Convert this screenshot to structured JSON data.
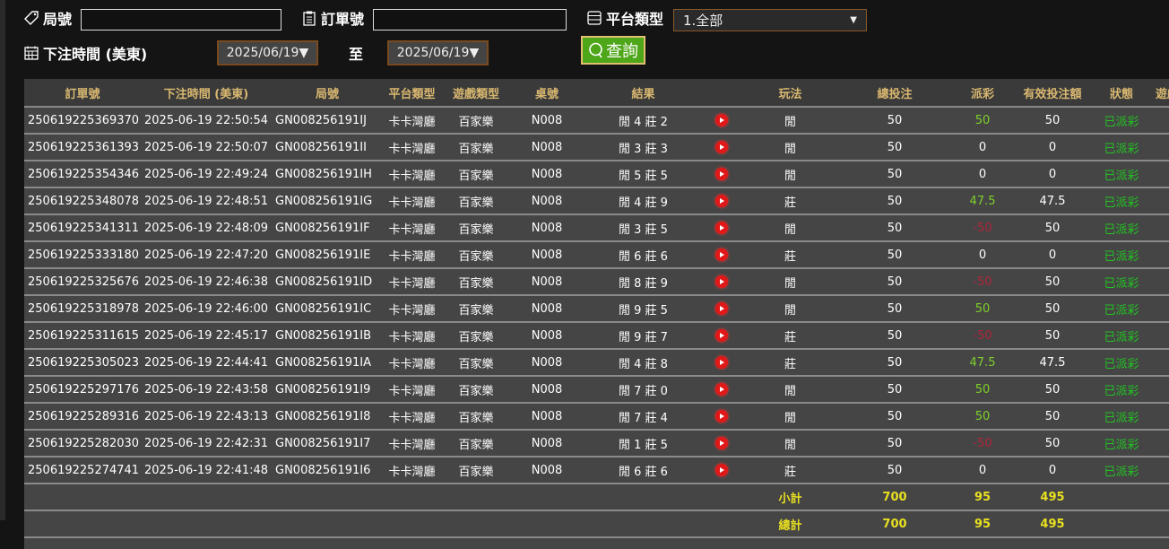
{
  "filters": {
    "round_label": "局號",
    "round_value": "",
    "order_label": "訂單號",
    "order_value": "",
    "platform_label": "平台類型",
    "platform_value": "1.全部",
    "time_label": "下注時間 (美東)",
    "date_from": "2025/06/19▼",
    "to_label": "至",
    "date_to": "2025/06/19▼",
    "query_label": "查詢"
  },
  "table": {
    "headers": [
      "訂單號",
      "下注時間 (美東)",
      "局號",
      "平台類型",
      "遊戲類型",
      "桌號",
      "結果",
      "",
      "玩法",
      "總投注",
      "派彩",
      "有效投注額",
      "狀態",
      "遊戲"
    ],
    "rows": [
      [
        "250619225369370",
        "2025-06-19 22:50:54",
        "GN008256191IJ",
        "卡卡灣廳",
        "百家樂",
        "N008",
        "閒 4 莊 2",
        "閒",
        "50",
        "50",
        "50",
        "已派彩"
      ],
      [
        "250619225361393",
        "2025-06-19 22:50:07",
        "GN008256191II",
        "卡卡灣廳",
        "百家樂",
        "N008",
        "閒 3 莊 3",
        "閒",
        "50",
        "0",
        "0",
        "已派彩"
      ],
      [
        "250619225354346",
        "2025-06-19 22:49:24",
        "GN008256191IH",
        "卡卡灣廳",
        "百家樂",
        "N008",
        "閒 5 莊 5",
        "閒",
        "50",
        "0",
        "0",
        "已派彩"
      ],
      [
        "250619225348078",
        "2025-06-19 22:48:51",
        "GN008256191IG",
        "卡卡灣廳",
        "百家樂",
        "N008",
        "閒 4 莊 9",
        "莊",
        "50",
        "47.5",
        "47.5",
        "已派彩"
      ],
      [
        "250619225341311",
        "2025-06-19 22:48:09",
        "GN008256191IF",
        "卡卡灣廳",
        "百家樂",
        "N008",
        "閒 3 莊 5",
        "閒",
        "50",
        "-50",
        "50",
        "已派彩"
      ],
      [
        "250619225333180",
        "2025-06-19 22:47:20",
        "GN008256191IE",
        "卡卡灣廳",
        "百家樂",
        "N008",
        "閒 6 莊 6",
        "莊",
        "50",
        "0",
        "0",
        "已派彩"
      ],
      [
        "250619225325676",
        "2025-06-19 22:46:38",
        "GN008256191ID",
        "卡卡灣廳",
        "百家樂",
        "N008",
        "閒 8 莊 9",
        "閒",
        "50",
        "-50",
        "50",
        "已派彩"
      ],
      [
        "250619225318978",
        "2025-06-19 22:46:00",
        "GN008256191IC",
        "卡卡灣廳",
        "百家樂",
        "N008",
        "閒 9 莊 5",
        "閒",
        "50",
        "50",
        "50",
        "已派彩"
      ],
      [
        "250619225311615",
        "2025-06-19 22:45:17",
        "GN008256191IB",
        "卡卡灣廳",
        "百家樂",
        "N008",
        "閒 9 莊 7",
        "莊",
        "50",
        "-50",
        "50",
        "已派彩"
      ],
      [
        "250619225305023",
        "2025-06-19 22:44:41",
        "GN008256191IA",
        "卡卡灣廳",
        "百家樂",
        "N008",
        "閒 4 莊 8",
        "莊",
        "50",
        "47.5",
        "47.5",
        "已派彩"
      ],
      [
        "250619225297176",
        "2025-06-19 22:43:58",
        "GN008256191I9",
        "卡卡灣廳",
        "百家樂",
        "N008",
        "閒 7 莊 0",
        "閒",
        "50",
        "50",
        "50",
        "已派彩"
      ],
      [
        "250619225289316",
        "2025-06-19 22:43:13",
        "GN008256191I8",
        "卡卡灣廳",
        "百家樂",
        "N008",
        "閒 7 莊 4",
        "閒",
        "50",
        "50",
        "50",
        "已派彩"
      ],
      [
        "250619225282030",
        "2025-06-19 22:42:31",
        "GN008256191I7",
        "卡卡灣廳",
        "百家樂",
        "N008",
        "閒 1 莊 5",
        "閒",
        "50",
        "-50",
        "50",
        "已派彩"
      ],
      [
        "250619225274741",
        "2025-06-19 22:41:48",
        "GN008256191I6",
        "卡卡灣廳",
        "百家樂",
        "N008",
        "閒 6 莊 6",
        "莊",
        "50",
        "0",
        "0",
        "已派彩"
      ]
    ],
    "subtotal": {
      "label": "小計",
      "total_bet": "700",
      "payout": "95",
      "valid_bet": "495"
    },
    "grandtotal": {
      "label": "總計",
      "total_bet": "700",
      "payout": "95",
      "valid_bet": "495"
    }
  },
  "colors": {
    "header_text": "#d9b870",
    "win": "#7fd02a",
    "loss": "#b0243a",
    "status": "#22c322",
    "total": "#e8e020",
    "query_button": "#4ea619"
  },
  "icons": {
    "round": "tag-icon",
    "order": "clipboard-icon",
    "platform": "list-icon",
    "time": "calendar-icon",
    "query": "search-icon",
    "replay": "play-icon"
  }
}
